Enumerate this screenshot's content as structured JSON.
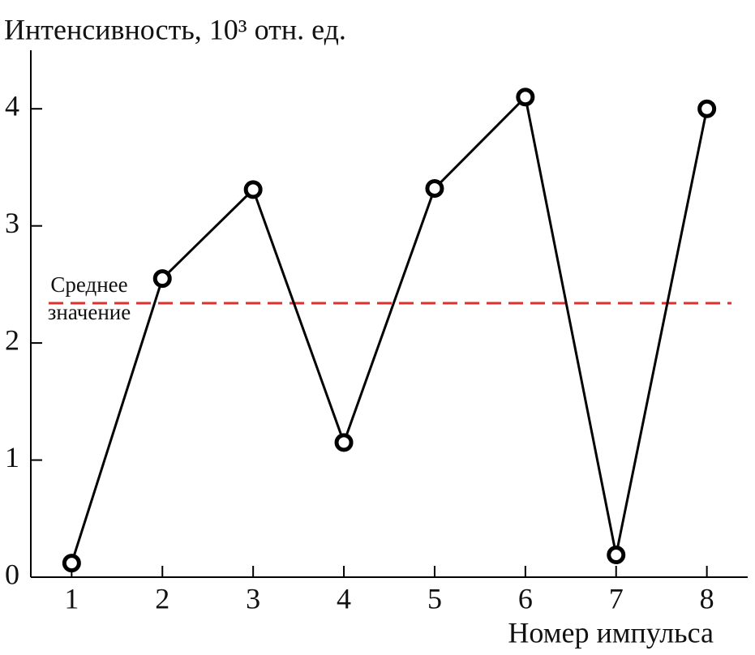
{
  "chart_data": {
    "type": "line",
    "ylabel": "Интенсивность, 10³ отн. ед.",
    "xlabel": "Номер импульса",
    "x": [
      1,
      2,
      3,
      4,
      5,
      6,
      7,
      8
    ],
    "values": [
      0.12,
      2.55,
      3.31,
      1.15,
      3.32,
      4.1,
      0.19,
      4.0
    ],
    "color": "#000000",
    "xlim": [
      0.55,
      8.45
    ],
    "xticks": [
      1,
      2,
      3,
      4,
      5,
      6,
      7,
      8
    ],
    "ylim": [
      0,
      4.5
    ],
    "yticks": [
      0,
      1,
      2,
      3,
      4
    ],
    "mean_line": {
      "value": 2.34,
      "label": [
        "Среднее",
        "значение"
      ],
      "color": "#e0302e"
    }
  }
}
